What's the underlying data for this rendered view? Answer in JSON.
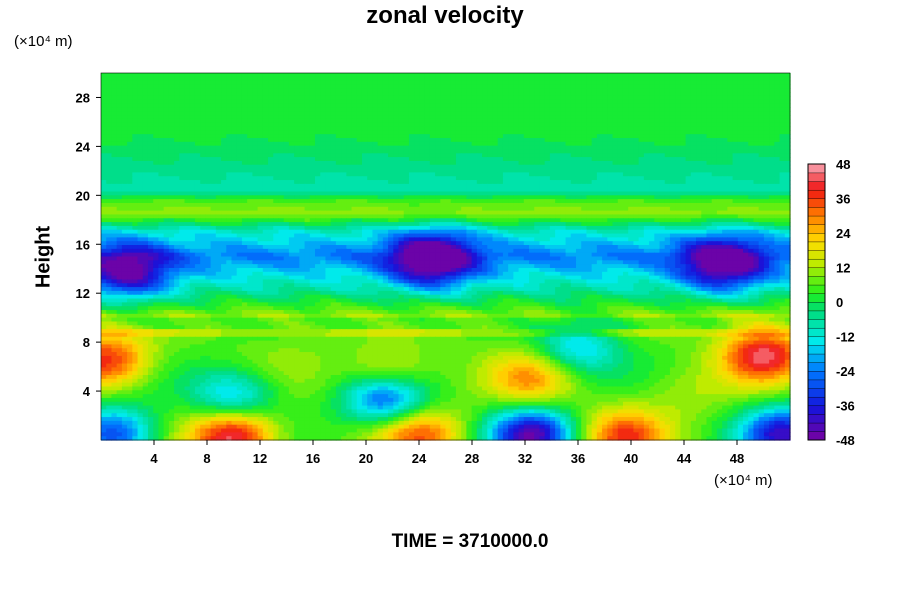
{
  "chart_data": {
    "type": "heatmap",
    "title": "zonal velocity",
    "xlabel": "",
    "ylabel": "Height",
    "x_unit_label": "(×10⁴ m)",
    "y_unit_label": "(×10⁴ m)",
    "xlim": [
      0,
      52
    ],
    "ylim": [
      0,
      30
    ],
    "xticks": [
      4,
      8,
      12,
      16,
      20,
      24,
      28,
      32,
      36,
      40,
      44,
      48
    ],
    "yticks": [
      4,
      8,
      12,
      16,
      20,
      24,
      28
    ],
    "colorbar": {
      "range": [
        -48,
        48
      ],
      "ticks": [
        48,
        36,
        24,
        12,
        0,
        -12,
        -24,
        -36,
        -48
      ],
      "levels": 32,
      "colormap": "rainbow (purple → blue → cyan → green → yellow → orange → red → pink)"
    },
    "bands": [
      {
        "y": 25.0,
        "value": 1
      },
      {
        "y": 20.4,
        "value": -8
      },
      {
        "y": 19.5,
        "value": 6
      },
      {
        "y": 18.5,
        "value": 11
      },
      {
        "y": 17.1,
        "value": -10
      },
      {
        "y": 15.0,
        "value": -24
      },
      {
        "y": 13.8,
        "value": -16
      },
      {
        "y": 12.2,
        "value": -6
      },
      {
        "y": 10.0,
        "value": 12
      }
    ],
    "features": [
      {
        "x": 0.5,
        "y": 6.5,
        "value": 40
      },
      {
        "x": 10,
        "y": 0.3,
        "value": 48
      },
      {
        "x": 24,
        "y": 0.5,
        "value": 34
      },
      {
        "x": 39.5,
        "y": 0.3,
        "value": 36
      },
      {
        "x": 50,
        "y": 7.0,
        "value": 44
      },
      {
        "x": 32.5,
        "y": 5.0,
        "value": 28
      },
      {
        "x": 21.8,
        "y": 5.2,
        "value": 30
      },
      {
        "x": 21.5,
        "y": 3.5,
        "value": -32
      },
      {
        "x": 32.5,
        "y": 0.4,
        "value": -40
      },
      {
        "x": 51.5,
        "y": 0.5,
        "value": -36
      },
      {
        "x": 10,
        "y": 3.6,
        "value": -16
      },
      {
        "x": 1,
        "y": 0.5,
        "value": -28
      },
      {
        "x": 25,
        "y": 14.8,
        "value": -34
      },
      {
        "x": 47,
        "y": 14.4,
        "value": -30
      },
      {
        "x": 2,
        "y": 13.7,
        "value": -26
      },
      {
        "x": 36,
        "y": 7.5,
        "value": -14
      },
      {
        "x": 14,
        "y": 7.0,
        "value": 10
      },
      {
        "x": 44,
        "y": 4.0,
        "value": 14
      }
    ],
    "grid": false,
    "legend": "colorbar-right"
  },
  "footer": "TIME = 3710000.0"
}
